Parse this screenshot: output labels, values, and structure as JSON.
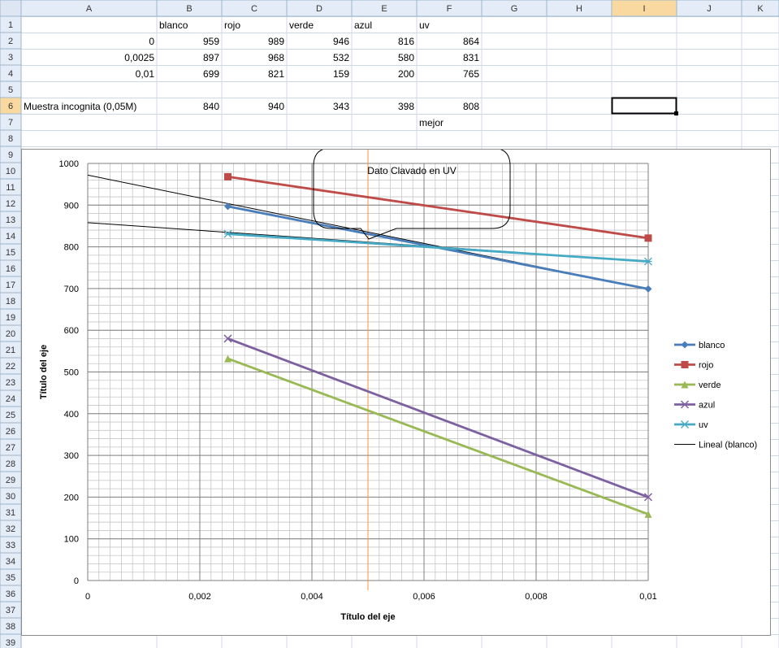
{
  "sheet": {
    "columns": [
      "A",
      "B",
      "C",
      "D",
      "E",
      "F",
      "G",
      "H",
      "I",
      "J",
      "K"
    ],
    "rows": [
      "1",
      "2",
      "3",
      "4",
      "5",
      "6",
      "7",
      "8",
      "9",
      "10",
      "11",
      "12",
      "13",
      "14",
      "15",
      "16",
      "17",
      "18",
      "19",
      "20",
      "21",
      "22",
      "23",
      "24",
      "25",
      "26",
      "27",
      "28",
      "29",
      "30",
      "31",
      "32",
      "33",
      "34",
      "35",
      "36",
      "37",
      "38",
      "39"
    ],
    "selected_column": "I",
    "selected_cell": "I6",
    "header_row": {
      "B": "blanco",
      "C": "rojo",
      "D": "verde",
      "E": "azul",
      "F": "uv"
    },
    "data_rows": [
      {
        "row": "2",
        "A": "0",
        "B": "959",
        "C": "989",
        "D": "946",
        "E": "816",
        "F": "864"
      },
      {
        "row": "3",
        "A": "0,0025",
        "B": "897",
        "C": "968",
        "D": "532",
        "E": "580",
        "F": "831"
      },
      {
        "row": "4",
        "A": "0,01",
        "B": "699",
        "C": "821",
        "D": "159",
        "E": "200",
        "F": "765"
      }
    ],
    "sample_row": {
      "row": "6",
      "A": "Muestra incognita (0,05M)",
      "B": "840",
      "C": "940",
      "D": "343",
      "E": "398",
      "F": "808"
    },
    "note": {
      "row": "7",
      "F": "mejor"
    }
  },
  "chart_data": {
    "type": "line",
    "title": "",
    "xlabel": "Título del eje",
    "ylabel": "Título del eje",
    "xlim": [
      0,
      0.01
    ],
    "ylim": [
      0,
      1000
    ],
    "x_ticks": [
      "0",
      "0,002",
      "0,004",
      "0,006",
      "0,008",
      "0,01"
    ],
    "y_ticks": [
      "0",
      "100",
      "200",
      "300",
      "400",
      "500",
      "600",
      "700",
      "800",
      "900",
      "1000"
    ],
    "grid": "major and minor",
    "legend_position": "right",
    "x": [
      0.0025,
      0.01
    ],
    "series": [
      {
        "name": "blanco",
        "values": [
          897,
          699
        ],
        "color": "#4a7ebb",
        "marker": "diamond"
      },
      {
        "name": "rojo",
        "values": [
          968,
          821
        ],
        "color": "#be4b48",
        "marker": "square"
      },
      {
        "name": "verde",
        "values": [
          532,
          159
        ],
        "color": "#98b954",
        "marker": "triangle"
      },
      {
        "name": "azul",
        "values": [
          580,
          200
        ],
        "color": "#7d60a0",
        "marker": "x"
      },
      {
        "name": "uv",
        "values": [
          831,
          765
        ],
        "color": "#46aac5",
        "marker": "star"
      }
    ],
    "trendlines": [
      {
        "name": "Lineal (blanco)",
        "color": "#000000",
        "points": [
          [
            0,
            972
          ],
          [
            0.01,
            699
          ]
        ]
      },
      {
        "name": "",
        "color": "#000000",
        "points": [
          [
            0,
            858
          ],
          [
            0.01,
            765
          ]
        ]
      }
    ],
    "vertical_line": {
      "x": 0.005,
      "color": "#f79646"
    },
    "callout_text": "Dato Clavado en UV"
  }
}
